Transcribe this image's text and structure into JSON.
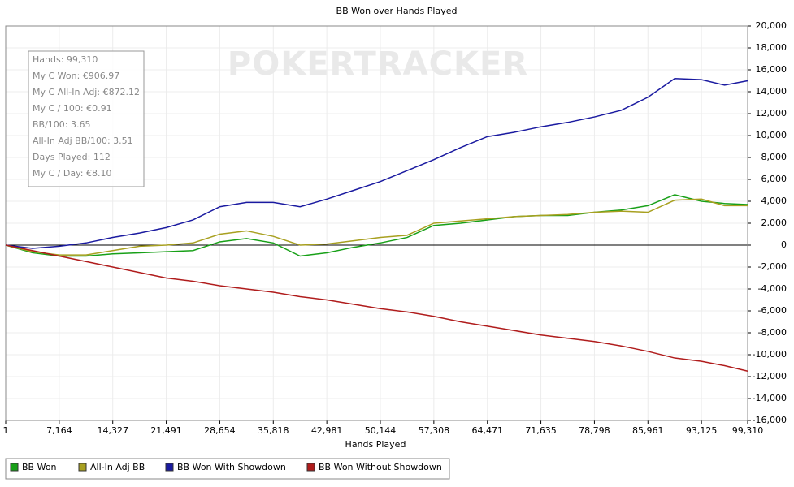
{
  "chart_data": {
    "type": "line",
    "title": "BB Won over Hands Played",
    "x_label": "Hands Played",
    "watermark": "POKERTRACKER",
    "info_box": [
      "Hands: 99,310",
      "My C Won: €906.97",
      "My C All-In Adj: €872.12",
      "My C / 100: €0.91",
      "BB/100: 3.65",
      "All-In Adj BB/100: 3.51",
      "Days Played: 112",
      "My C / Day: €8.10"
    ],
    "x": [
      1,
      3582,
      7164,
      10746,
      14327,
      17909,
      21491,
      25073,
      28654,
      32236,
      35818,
      39400,
      42981,
      46563,
      50144,
      53726,
      57308,
      60890,
      64471,
      68053,
      71635,
      75217,
      78798,
      82380,
      85961,
      89543,
      93125,
      96218,
      99310
    ],
    "series": [
      {
        "name": "BB Won",
        "color": "#18a018",
        "values": [
          0,
          -700,
          -1000,
          -1000,
          -800,
          -700,
          -600,
          -500,
          300,
          600,
          200,
          -1000,
          -700,
          -200,
          200,
          700,
          1800,
          2000,
          2300,
          2600,
          2700,
          2700,
          3000,
          3200,
          3600,
          4600,
          4000,
          3800,
          3700
        ]
      },
      {
        "name": "All-In Adj BB",
        "color": "#a8a020",
        "values": [
          0,
          -600,
          -900,
          -900,
          -500,
          -100,
          0,
          200,
          1000,
          1300,
          800,
          0,
          100,
          400,
          700,
          900,
          2000,
          2200,
          2400,
          2600,
          2700,
          2800,
          3000,
          3100,
          3000,
          4100,
          4200,
          3600,
          3600
        ]
      },
      {
        "name": "BB Won With Showdown",
        "color": "#1a1aa0",
        "values": [
          0,
          -300,
          -100,
          200,
          700,
          1100,
          1600,
          2300,
          3500,
          3900,
          3900,
          3500,
          4200,
          5000,
          5800,
          6800,
          7800,
          8900,
          9900,
          10300,
          10800,
          11200,
          11700,
          12300,
          13500,
          15200,
          15100,
          14600,
          15000
        ]
      },
      {
        "name": "BB Won Without Showdown",
        "color": "#b01c1c",
        "values": [
          0,
          -500,
          -1000,
          -1500,
          -2000,
          -2500,
          -3000,
          -3300,
          -3700,
          -4000,
          -4300,
          -4700,
          -5000,
          -5400,
          -5800,
          -6100,
          -6500,
          -7000,
          -7400,
          -7800,
          -8200,
          -8500,
          -8800,
          -9200,
          -9700,
          -10300,
          -10600,
          -11000,
          -11500
        ]
      }
    ],
    "xlim": [
      1,
      99310
    ],
    "xticks": [
      1,
      {
        "value": 7164,
        "label": "7,164"
      },
      {
        "value": 14327,
        "label": "14,327"
      },
      {
        "value": 21491,
        "label": "21,491"
      },
      {
        "value": 28654,
        "label": "28,654"
      },
      {
        "value": 35818,
        "label": "35,818"
      },
      {
        "value": 42981,
        "label": "42,981"
      },
      {
        "value": 50144,
        "label": "50,144"
      },
      {
        "value": 57308,
        "label": "57,308"
      },
      {
        "value": 64471,
        "label": "64,471"
      },
      {
        "value": 71635,
        "label": "71,635"
      },
      {
        "value": 78798,
        "label": "78,798"
      },
      {
        "value": 85961,
        "label": "85,961"
      },
      {
        "value": 93125,
        "label": "93,125"
      },
      {
        "value": 99310,
        "label": "99,310"
      }
    ],
    "ylim": [
      -16000,
      20000
    ],
    "yticks": [
      {
        "value": 20000,
        "label": "20,000"
      },
      {
        "value": 18000,
        "label": "18,000"
      },
      {
        "value": 16000,
        "label": "16,000"
      },
      {
        "value": 14000,
        "label": "14,000"
      },
      {
        "value": 12000,
        "label": "12,000"
      },
      {
        "value": 10000,
        "label": "10,000"
      },
      {
        "value": 8000,
        "label": "8,000"
      },
      {
        "value": 6000,
        "label": "6,000"
      },
      {
        "value": 4000,
        "label": "4,000"
      },
      {
        "value": 2000,
        "label": "2,000"
      },
      0,
      {
        "value": -2000,
        "label": "-2,000"
      },
      {
        "value": -4000,
        "label": "-4,000"
      },
      {
        "value": -6000,
        "label": "-6,000"
      },
      {
        "value": -8000,
        "label": "-8,000"
      },
      {
        "value": -10000,
        "label": "-10,000"
      },
      {
        "value": -12000,
        "label": "-12,000"
      },
      {
        "value": -14000,
        "label": "-14,000"
      },
      {
        "value": -16000,
        "label": "-16,000"
      }
    ],
    "grid": true
  }
}
